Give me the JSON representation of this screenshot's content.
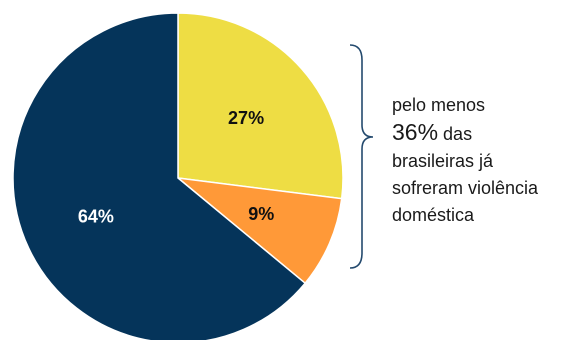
{
  "chart_data": {
    "type": "pie",
    "start_angle_deg": 0,
    "direction": "clockwise",
    "slices": [
      {
        "label": "27%",
        "value": 27,
        "color": "#EEDD44",
        "label_color": "#111111"
      },
      {
        "label": "9%",
        "value": 9,
        "color": "#FF9938",
        "label_color": "#111111"
      },
      {
        "label": "64%",
        "value": 64,
        "color": "#05345A",
        "label_color": "#FFFFFF"
      }
    ]
  },
  "annotation": {
    "line1": "pelo menos",
    "highlight": "36%",
    "line2_rest": " das",
    "line3": "brasileiras já",
    "line4": "sofreram violência",
    "line5": "doméstica"
  },
  "colors": {
    "bracket": "#244A6E",
    "slice_border": "#FFFFFF"
  }
}
